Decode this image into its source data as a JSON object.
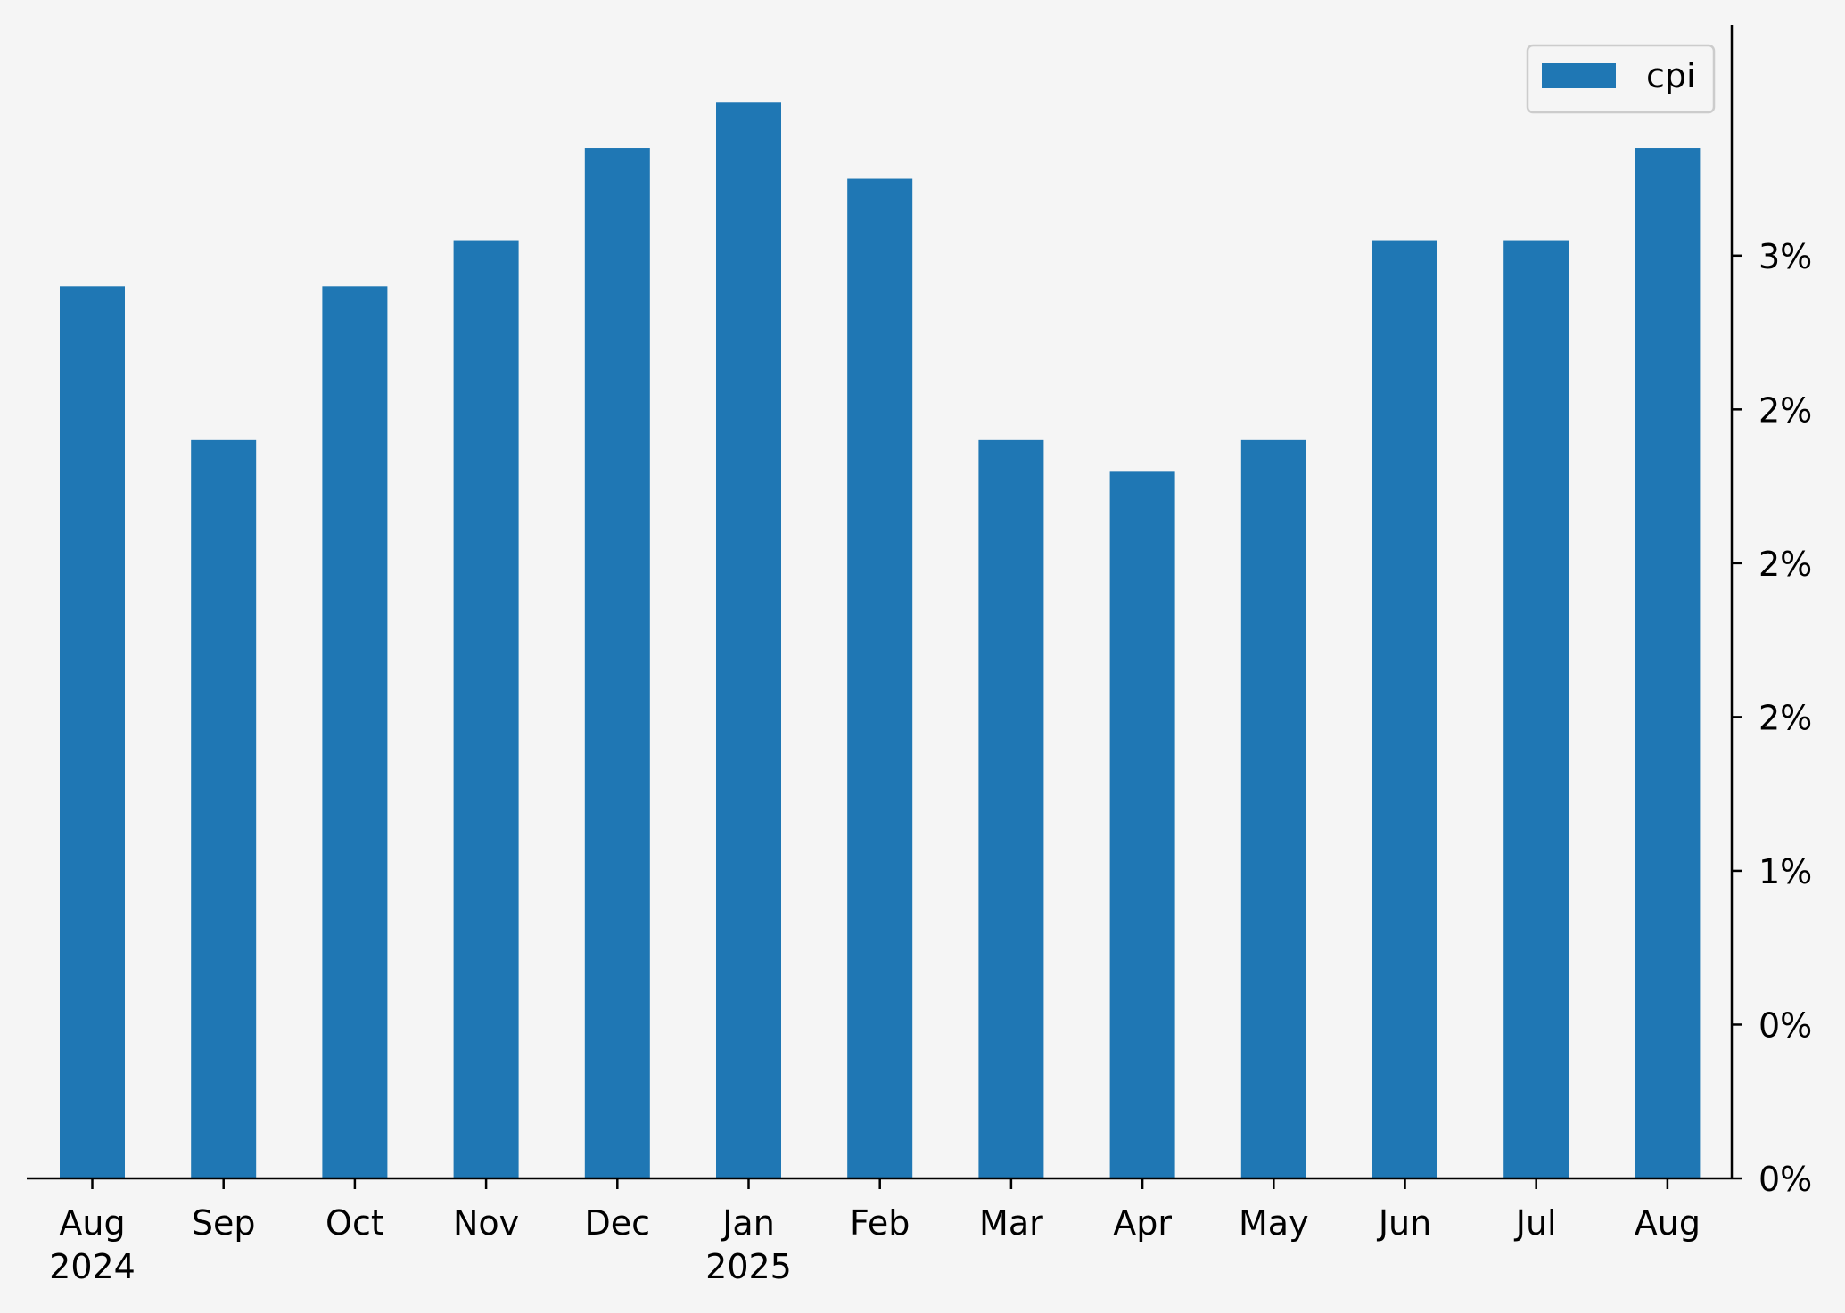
{
  "chart_data": {
    "type": "bar",
    "categories": [
      "Aug",
      "Sep",
      "Oct",
      "Nov",
      "Dec",
      "Jan",
      "Feb",
      "Mar",
      "Apr",
      "May",
      "Jun",
      "Jul",
      "Aug"
    ],
    "category_years": [
      "2024",
      "",
      "",
      "",
      "",
      "2025",
      "",
      "",
      "",
      "",
      "",
      "",
      ""
    ],
    "series": [
      {
        "name": "cpi",
        "color": "#1f77b4",
        "values": [
          2.9,
          2.4,
          2.9,
          3.05,
          3.35,
          3.5,
          3.25,
          2.4,
          2.3,
          2.4,
          3.05,
          3.05,
          3.35
        ]
      }
    ],
    "y_axis": {
      "position": "right",
      "ylim": [
        0,
        3.75
      ],
      "ticks": [
        0,
        0.5,
        1.0,
        1.5,
        2.0,
        2.5,
        3.0
      ],
      "tick_labels": [
        "0%",
        "0%",
        "1%",
        "2%",
        "2%",
        "2%",
        "3%"
      ]
    },
    "xlabel": "",
    "ylabel": "",
    "legend": {
      "position": "top-right",
      "labels": [
        "cpi"
      ]
    },
    "grid": false,
    "background": "#f5f5f5"
  }
}
